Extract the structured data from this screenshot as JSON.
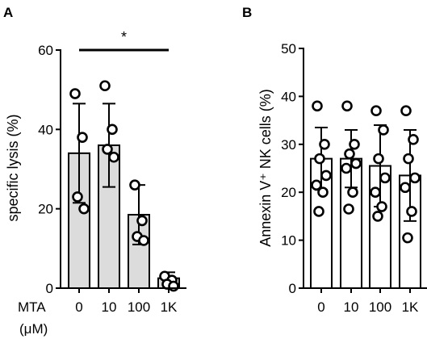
{
  "figure": {
    "x_prefix_line1": "MTA",
    "x_prefix_line2": "(μM)"
  },
  "chart_data": [
    {
      "panel": "A",
      "type": "bar",
      "ylabel": "specific lysis (%)",
      "ylim": [
        0,
        60
      ],
      "yticks": [
        0,
        20,
        40,
        60
      ],
      "categories": [
        "0",
        "10",
        "100",
        "1K"
      ],
      "bar_fill": "#dcdcdc",
      "series": [
        {
          "values": [
            34,
            36,
            18.5,
            2.5
          ],
          "sd": [
            12.5,
            10.5,
            7.5,
            1.5
          ],
          "points": [
            [
              49,
              38,
              23,
              20
            ],
            [
              51,
              40,
              35,
              33
            ],
            [
              26,
              17,
              13,
              12
            ],
            [
              3,
              2,
              1,
              0.5
            ]
          ]
        }
      ],
      "significance": {
        "label": "*",
        "from": "0",
        "to": "1K"
      }
    },
    {
      "panel": "B",
      "type": "bar",
      "ylabel": "Annexin V⁺ NK cells (%)",
      "ylim": [
        0,
        50
      ],
      "yticks": [
        0,
        10,
        20,
        30,
        40,
        50
      ],
      "categories": [
        "0",
        "10",
        "100",
        "1K"
      ],
      "bar_fill": "#ffffff",
      "series": [
        {
          "values": [
            27,
            27,
            25.5,
            23.5
          ],
          "sd": [
            6.5,
            6,
            8.5,
            9.5
          ],
          "points": [
            [
              38,
              30,
              27,
              23.5,
              21.5,
              20,
              16
            ],
            [
              38,
              30,
              28,
              26,
              25,
              20,
              16.5
            ],
            [
              37,
              33,
              27,
              23,
              20,
              17,
              15
            ],
            [
              37,
              31,
              27,
              23,
              21,
              16,
              10.5
            ]
          ]
        }
      ]
    }
  ]
}
